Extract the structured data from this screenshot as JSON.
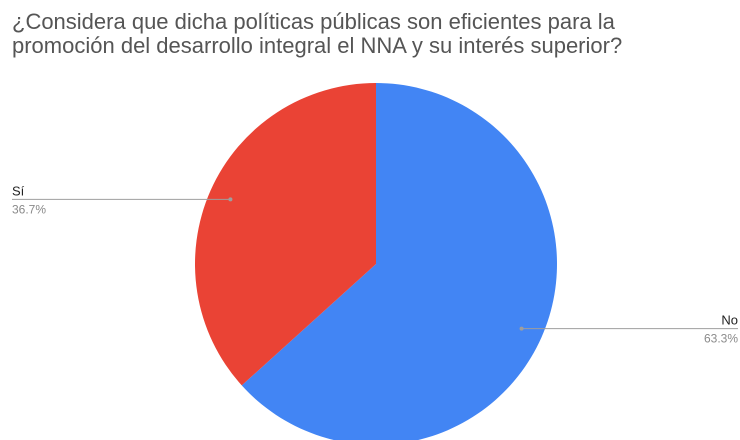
{
  "chart_data": {
    "type": "pie",
    "title_lines": [
      "¿Considera que dicha políticas públicas son eficientes para la",
      "promoción del desarrollo integral el NNA y su interés superior?"
    ],
    "slices": [
      {
        "label": "No",
        "value": 63.3,
        "value_label": "63.3%",
        "color": "#4285f4",
        "label_side": "right"
      },
      {
        "label": "Sí",
        "value": 36.7,
        "value_label": "36.7%",
        "color": "#ea4335",
        "label_side": "left"
      }
    ],
    "start_angle_deg": 0,
    "direction": "clockwise",
    "legend": "none",
    "leader_line_color": "#9e9e9e"
  }
}
